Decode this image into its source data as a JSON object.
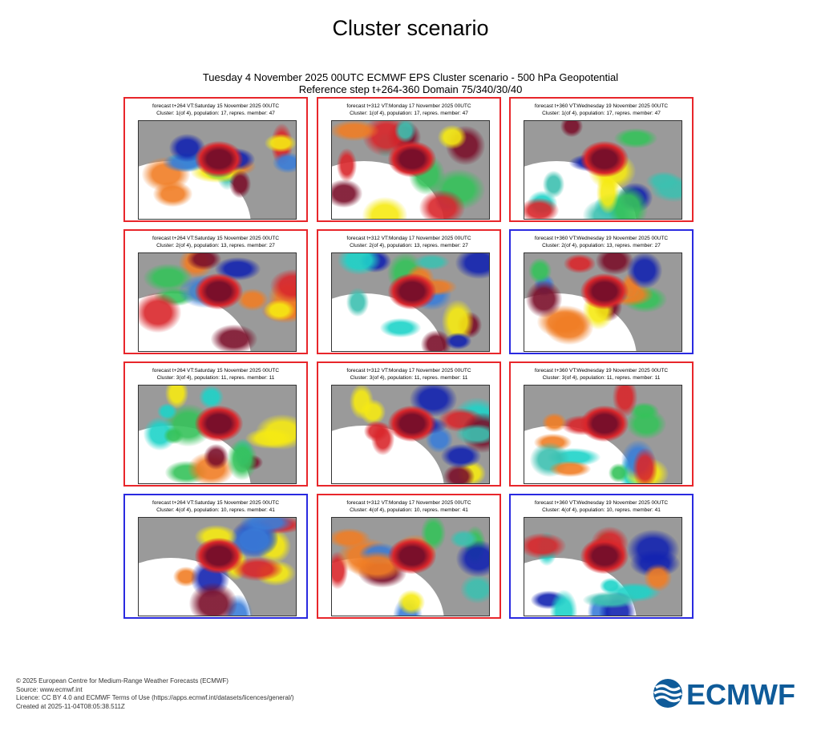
{
  "header": {
    "title": "Cluster scenario",
    "subtitle_line1": "Tuesday 4 November 2025 00UTC ECMWF EPS Cluster scenario - 500 hPa Geopotential",
    "subtitle_line2": "Reference step t+264-360 Domain 75/340/30/40"
  },
  "chart_data": {
    "type": "heatmap",
    "title": "Cluster scenario",
    "columns": [
      {
        "forecast": "forecast t+264 VT:Saturday 15 November 2025 00UTC"
      },
      {
        "forecast": "forecast t+312 VT:Monday 17 November 2025 00UTC"
      },
      {
        "forecast": "forecast t+360 VT:Wednesday 19 November 2025 00UTC"
      }
    ],
    "clusters": [
      {
        "label": "Cluster: 1(of 4), population: 17, repres. member: 47",
        "border": [
          "#e8262b",
          "#e8262b",
          "#e8262b"
        ]
      },
      {
        "label": "Cluster: 2(of 4), population: 13, repres. member: 27",
        "border": [
          "#e8262b",
          "#e8262b",
          "#2a2ae0"
        ]
      },
      {
        "label": "Cluster: 3(of 4), population: 11, repres. member: 11",
        "border": [
          "#e8262b",
          "#e8262b",
          "#e8262b"
        ]
      },
      {
        "label": "Cluster: 4(of 4), population: 10, repres. member: 41",
        "border": [
          "#2a2ae0",
          "#e8262b",
          "#2a2ae0"
        ]
      }
    ]
  },
  "footer": {
    "line1": "© 2025 European Centre for Medium-Range Weather Forecasts (ECMWF)",
    "line2": "Source: www.ecmwf.int",
    "line3": "Licence: CC BY 4.0 and ECMWF Terms of Use (https://apps.ecmwf.int/datasets/licences/general/)",
    "line4": "Created at 2025-11-04T08:05:38.511Z"
  },
  "logo": {
    "text": "ECMWF",
    "color": "#0f5b99"
  }
}
